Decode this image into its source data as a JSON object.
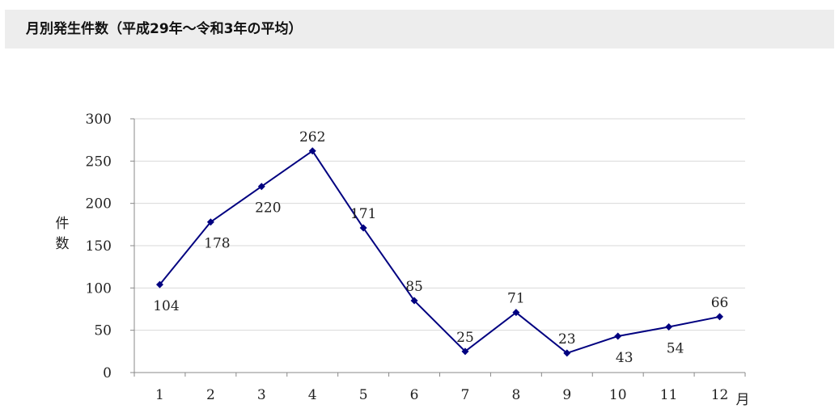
{
  "header": {
    "title": "月別発生件数（平成29年～令和3年の平均）"
  },
  "chart_data": {
    "type": "line",
    "title": "",
    "categories": [
      "1",
      "2",
      "3",
      "4",
      "5",
      "6",
      "7",
      "8",
      "9",
      "10",
      "11",
      "12"
    ],
    "values": [
      104,
      178,
      220,
      262,
      171,
      85,
      25,
      71,
      23,
      43,
      54,
      66
    ],
    "xlabel": "月",
    "ylabel": "件数",
    "ylim": [
      0,
      300
    ],
    "yticks": [
      0,
      50,
      100,
      150,
      200,
      250,
      300
    ],
    "grid": true,
    "line_color": "#000080",
    "grid_color": "#d9d9d9"
  }
}
